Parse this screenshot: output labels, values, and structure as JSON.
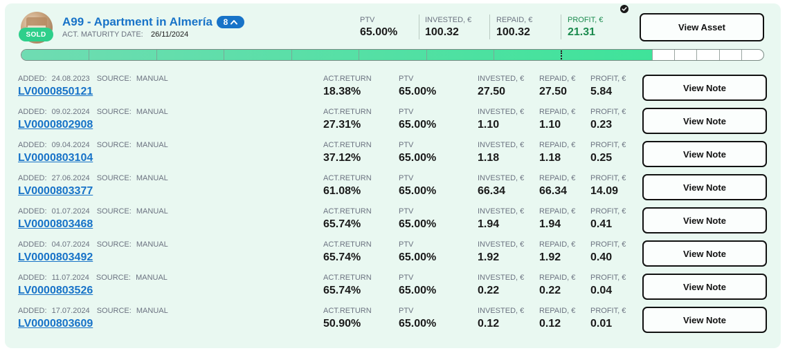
{
  "asset": {
    "title": "A99 - Apartment in Almería",
    "notes_count": "8",
    "badge": "SOLD",
    "maturity_label": "ACT. MATURITY DATE:",
    "maturity_date": "26/11/2024",
    "stats": [
      {
        "label": "PTV",
        "value": "65.00%"
      },
      {
        "label": "INVESTED, €",
        "value": "100.32"
      },
      {
        "label": "REPAID, €",
        "value": "100.32"
      },
      {
        "label": "PROFIT, €",
        "value": "21.31"
      }
    ],
    "view_label": "View Asset",
    "progress": {
      "completed_segments": 27,
      "total_segments": 32,
      "marker_segment": 24
    },
    "colors": {
      "accent": "#1873c8",
      "profit": "#1b8a4e",
      "badge": "#2ecf8b",
      "progress": "#3fe39a"
    }
  },
  "note_columns": {
    "added": "ADDED:",
    "source": "SOURCE:",
    "act_return": "ACT.RETURN",
    "ptv": "PTV",
    "invested": "INVESTED, €",
    "repaid": "REPAID, €",
    "profit": "PROFIT, €"
  },
  "note_button_label": "View Note",
  "notes": [
    {
      "added": "24.08.2023",
      "source": "MANUAL",
      "id": "LV0000850121",
      "act_return": "18.38%",
      "ptv": "65.00%",
      "invested": "27.50",
      "repaid": "27.50",
      "profit": "5.84"
    },
    {
      "added": "09.02.2024",
      "source": "MANUAL",
      "id": "LV0000802908",
      "act_return": "27.31%",
      "ptv": "65.00%",
      "invested": "1.10",
      "repaid": "1.10",
      "profit": "0.23"
    },
    {
      "added": "09.04.2024",
      "source": "MANUAL",
      "id": "LV0000803104",
      "act_return": "37.12%",
      "ptv": "65.00%",
      "invested": "1.18",
      "repaid": "1.18",
      "profit": "0.25"
    },
    {
      "added": "27.06.2024",
      "source": "MANUAL",
      "id": "LV0000803377",
      "act_return": "61.08%",
      "ptv": "65.00%",
      "invested": "66.34",
      "repaid": "66.34",
      "profit": "14.09"
    },
    {
      "added": "01.07.2024",
      "source": "MANUAL",
      "id": "LV0000803468",
      "act_return": "65.74%",
      "ptv": "65.00%",
      "invested": "1.94",
      "repaid": "1.94",
      "profit": "0.41"
    },
    {
      "added": "04.07.2024",
      "source": "MANUAL",
      "id": "LV0000803492",
      "act_return": "65.74%",
      "ptv": "65.00%",
      "invested": "1.92",
      "repaid": "1.92",
      "profit": "0.40"
    },
    {
      "added": "11.07.2024",
      "source": "MANUAL",
      "id": "LV0000803526",
      "act_return": "65.74%",
      "ptv": "65.00%",
      "invested": "0.22",
      "repaid": "0.22",
      "profit": "0.04"
    },
    {
      "added": "17.07.2024",
      "source": "MANUAL",
      "id": "LV0000803609",
      "act_return": "50.90%",
      "ptv": "65.00%",
      "invested": "0.12",
      "repaid": "0.12",
      "profit": "0.01"
    }
  ]
}
